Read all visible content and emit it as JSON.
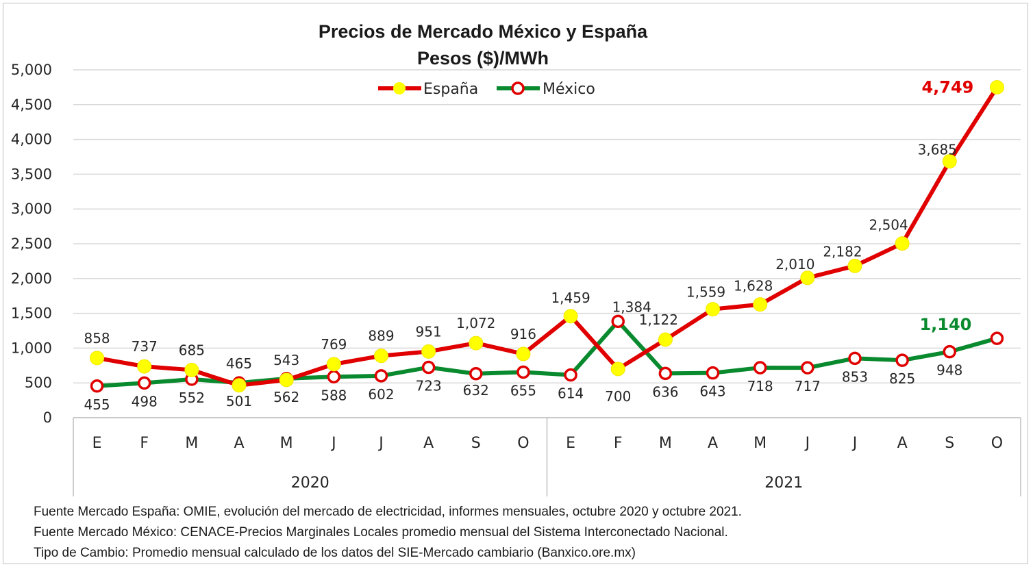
{
  "chart_data": {
    "type": "line",
    "title": "Precios de Mercado México y España",
    "subtitle": "Pesos ($)/MWh",
    "ylim": [
      0,
      5000
    ],
    "yticks": [
      "0",
      "500",
      "1,000",
      "1,500",
      "2,000",
      "2,500",
      "3,000",
      "3,500",
      "4,000",
      "4,500",
      "5,000"
    ],
    "grid": true,
    "legend_position": "top-center",
    "categories": [
      "E",
      "F",
      "M",
      "A",
      "M",
      "J",
      "J",
      "A",
      "S",
      "O",
      "E",
      "F",
      "M",
      "A",
      "M",
      "J",
      "J",
      "A",
      "S",
      "O"
    ],
    "groups": [
      {
        "label": "2020",
        "count": 10
      },
      {
        "label": "2021",
        "count": 10
      }
    ],
    "series": [
      {
        "name": "España",
        "color": "#e00000",
        "marker_color": "#ffff00",
        "values": [
          858,
          737,
          685,
          465,
          543,
          769,
          889,
          951,
          1072,
          916,
          1459,
          700,
          1122,
          1559,
          1628,
          2010,
          2182,
          2504,
          3685,
          4749
        ],
        "labels": [
          "858",
          "737",
          "685",
          "465",
          "543",
          "769",
          "889",
          "951",
          "1,072",
          "916",
          "1,459",
          "700",
          "1,122",
          "1,559",
          "1,628",
          "2,010",
          "2,182",
          "2,504",
          "3,685",
          "4,749"
        ]
      },
      {
        "name": "México",
        "color": "#0a8a2e",
        "marker_color": "#e00000",
        "values": [
          455,
          498,
          552,
          501,
          562,
          588,
          602,
          723,
          632,
          655,
          614,
          1384,
          636,
          643,
          718,
          717,
          853,
          825,
          948,
          1140
        ],
        "labels": [
          "455",
          "498",
          "552",
          "501",
          "562",
          "588",
          "602",
          "723",
          "632",
          "655",
          "614",
          "1,384",
          "636",
          "643",
          "718",
          "717",
          "853",
          "825",
          "948",
          "1,140"
        ]
      }
    ]
  },
  "sources": [
    "Fuente Mercado España: OMIE, evolución del mercado de electricidad, informes mensuales, octubre 2020 y octubre 2021.",
    "Fuente Mercado México: CENACE-Precios Marginales Locales promedio mensual del Sistema Interconectado Nacional.",
    "Tipo de Cambio: Promedio mensual calculado de los datos del SIE-Mercado cambiario (Banxico.ore.mx)"
  ]
}
